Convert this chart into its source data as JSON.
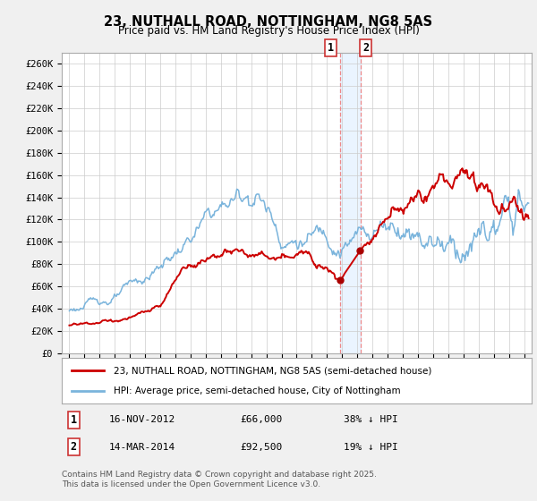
{
  "title": "23, NUTHALL ROAD, NOTTINGHAM, NG8 5AS",
  "subtitle": "Price paid vs. HM Land Registry's House Price Index (HPI)",
  "ylim": [
    0,
    270000
  ],
  "yticks": [
    0,
    20000,
    40000,
    60000,
    80000,
    100000,
    120000,
    140000,
    160000,
    180000,
    200000,
    220000,
    240000,
    260000
  ],
  "ytick_labels": [
    "£0",
    "£20K",
    "£40K",
    "£60K",
    "£80K",
    "£100K",
    "£120K",
    "£140K",
    "£160K",
    "£180K",
    "£200K",
    "£220K",
    "£240K",
    "£260K"
  ],
  "hpi_color": "#7ab4dc",
  "price_color": "#cc0000",
  "marker_color": "#aa0000",
  "vline_color": "#ee8888",
  "shade_color": "#ddeeff",
  "legend_label_price": "23, NUTHALL ROAD, NOTTINGHAM, NG8 5AS (semi-detached house)",
  "legend_label_hpi": "HPI: Average price, semi-detached house, City of Nottingham",
  "transaction1_date": "16-NOV-2012",
  "transaction1_price": "£66,000",
  "transaction1_hpi": "38% ↓ HPI",
  "transaction2_date": "14-MAR-2014",
  "transaction2_price": "£92,500",
  "transaction2_hpi": "19% ↓ HPI",
  "footer": "Contains HM Land Registry data © Crown copyright and database right 2025.\nThis data is licensed under the Open Government Licence v3.0.",
  "transaction1_x": 2012.88,
  "transaction2_x": 2014.21,
  "xlim_left": 1994.5,
  "xlim_right": 2025.5,
  "background_color": "#f0f0f0",
  "plot_bg_color": "#ffffff",
  "grid_color": "#cccccc"
}
